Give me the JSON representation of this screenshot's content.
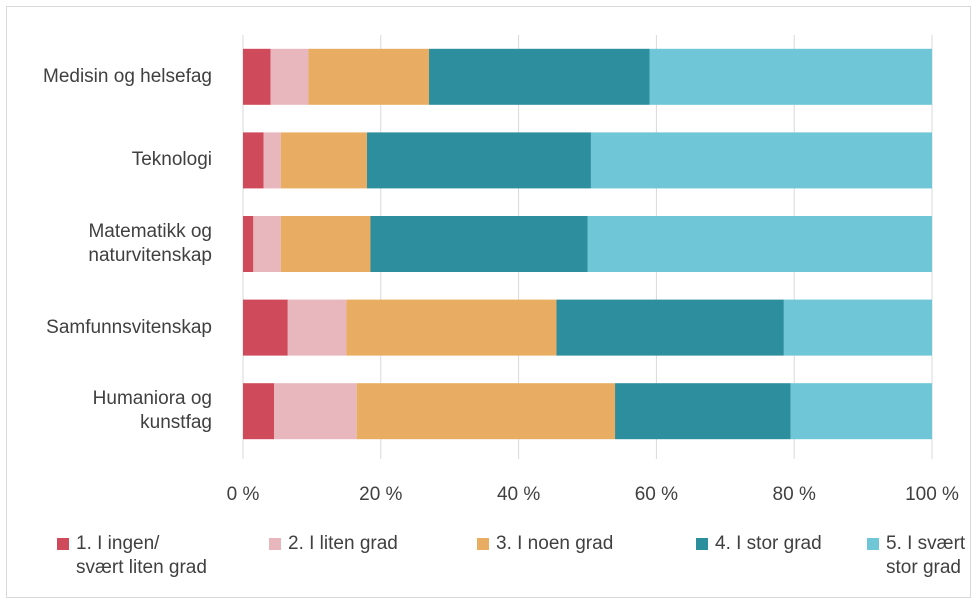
{
  "chart_data": {
    "type": "bar",
    "orientation": "horizontal",
    "stacked": "percent",
    "categories": [
      "Medisin og helsefag",
      "Teknologi",
      "Matematikk og\nnaturvitenskap",
      "Samfunnsvitenskap",
      "Humaniora og\nkunstfag"
    ],
    "series": [
      {
        "name": "1. I ingen/\nsvært liten grad",
        "color": "#cf4a5a",
        "values": [
          4,
          3,
          1.5,
          6.5,
          4.5
        ]
      },
      {
        "name": "2. I liten grad",
        "color": "#e8b7bd",
        "values": [
          5.5,
          2.5,
          4,
          8.5,
          12
        ]
      },
      {
        "name": "3. I noen grad",
        "color": "#e8ad62",
        "values": [
          17.5,
          12.5,
          13,
          30.5,
          37.5
        ]
      },
      {
        "name": "4. I stor grad",
        "color": "#2d8e9e",
        "values": [
          32,
          32.5,
          31.5,
          33,
          25.5
        ]
      },
      {
        "name": "5. I svært\nstor grad",
        "color": "#6ec6d7",
        "values": [
          41,
          49.5,
          50,
          21.5,
          20.5
        ]
      }
    ],
    "xticks": [
      "0 %",
      "20 %",
      "40 %",
      "60 %",
      "80 %",
      "100 %"
    ],
    "xlim": [
      0,
      100
    ],
    "title": "",
    "xlabel": "",
    "ylabel": "",
    "grid": true,
    "legend": "bottom"
  }
}
